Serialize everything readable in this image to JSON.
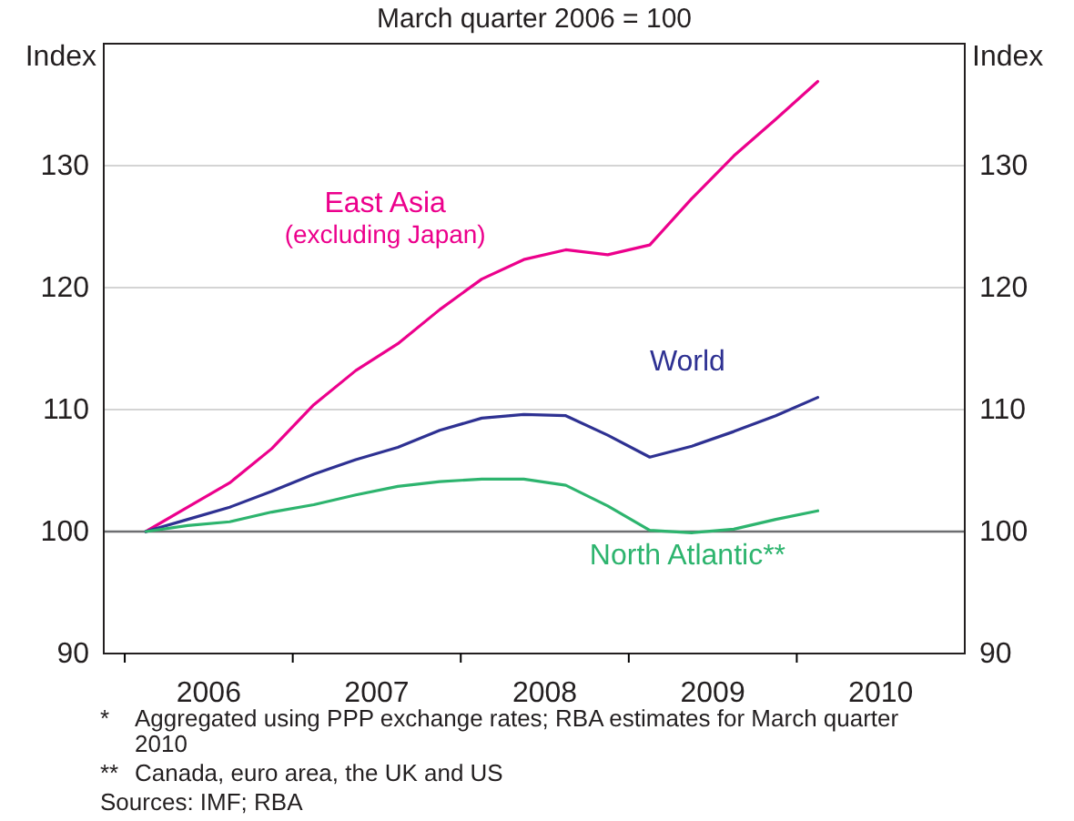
{
  "chart_data": {
    "type": "line",
    "subtitle": "March quarter 2006 = 100",
    "ylabel": "Index",
    "y2label": "Index",
    "x": [
      2006.125,
      2006.375,
      2006.625,
      2006.875,
      2007.125,
      2007.375,
      2007.625,
      2007.875,
      2008.125,
      2008.375,
      2008.625,
      2008.875,
      2009.125,
      2009.375,
      2009.625,
      2009.875,
      2010.125
    ],
    "series": [
      {
        "name": "East Asia (excluding Japan)",
        "color": "#ec008c",
        "values": [
          100,
          102,
          104,
          106.8,
          110.4,
          113.2,
          115.4,
          118.2,
          120.7,
          122.3,
          123.1,
          122.7,
          123.5,
          127.3,
          130.8,
          133.8,
          136.9
        ]
      },
      {
        "name": "World",
        "color": "#2e3192",
        "values": [
          100,
          101,
          102,
          103.3,
          104.7,
          105.9,
          106.9,
          108.3,
          109.3,
          109.6,
          109.5,
          107.9,
          106.1,
          107,
          108.2,
          109.5,
          111
        ]
      },
      {
        "name": "North Atlantic**",
        "color": "#2db46e",
        "values": [
          100,
          100.5,
          100.8,
          101.6,
          102.2,
          103,
          103.7,
          104.1,
          104.3,
          104.3,
          103.8,
          102.1,
          100.1,
          99.9,
          100.2,
          101,
          101.7
        ]
      }
    ],
    "xlim": [
      2005.875,
      2011
    ],
    "xticks": [
      {
        "value": 2006,
        "label": null
      },
      {
        "value": 2006.5,
        "label": "2006"
      },
      {
        "value": 2007,
        "label": null
      },
      {
        "value": 2007.5,
        "label": "2007"
      },
      {
        "value": 2008,
        "label": null
      },
      {
        "value": 2008.5,
        "label": "2008"
      },
      {
        "value": 2009,
        "label": null
      },
      {
        "value": 2009.5,
        "label": "2009"
      },
      {
        "value": 2010,
        "label": null
      },
      {
        "value": 2010.5,
        "label": "2010"
      }
    ],
    "ylim": [
      90,
      140
    ],
    "yticks": [
      90,
      100,
      110,
      120,
      130
    ],
    "y2lim": [
      90,
      140
    ],
    "y2ticks": [
      90,
      100,
      110,
      120,
      130
    ],
    "grid": "y",
    "legend": false,
    "marker": "none",
    "line_style": "solid",
    "ref_lines": [
      {
        "axis": "y",
        "value": 100,
        "color": "#6d6e71"
      }
    ],
    "annotations": [
      "* Aggregated using PPP exchange rates; RBA estimates for March quarter 2010",
      "** Canada, euro area, the UK and US",
      "Sources: IMF; RBA"
    ]
  }
}
